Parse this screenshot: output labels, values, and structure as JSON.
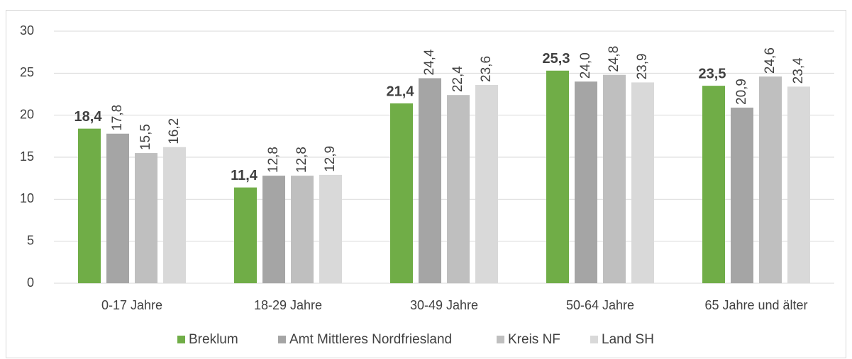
{
  "chart_data": {
    "type": "bar",
    "categories": [
      "0-17 Jahre",
      "18-29 Jahre",
      "30-49 Jahre",
      "50-64 Jahre",
      "65 Jahre und älter"
    ],
    "series": [
      {
        "name": "Breklum",
        "color": "#70ad47",
        "values": [
          18.4,
          11.4,
          21.4,
          25.3,
          23.5
        ],
        "value_labels": [
          "18,4",
          "11,4",
          "21,4",
          "25,3",
          "23,5"
        ]
      },
      {
        "name": "Amt Mittleres Nordfriesland",
        "color": "#a5a5a5",
        "values": [
          17.8,
          12.8,
          24.4,
          24.0,
          20.9
        ],
        "value_labels": [
          "17,8",
          "12,8",
          "24,4",
          "24,0",
          "20,9"
        ]
      },
      {
        "name": "Kreis NF",
        "color": "#bfbfbf",
        "values": [
          15.5,
          12.8,
          22.4,
          24.8,
          24.6
        ],
        "value_labels": [
          "15,5",
          "12,8",
          "22,4",
          "24,8",
          "24,6"
        ]
      },
      {
        "name": "Land SH",
        "color": "#d9d9d9",
        "values": [
          16.2,
          12.9,
          23.6,
          23.9,
          23.4
        ],
        "value_labels": [
          "16,2",
          "12,9",
          "23,6",
          "23,9",
          "23,4"
        ]
      }
    ],
    "ylim": [
      0,
      30
    ],
    "yticks": [
      0,
      5,
      10,
      15,
      20,
      25,
      30
    ],
    "grid": true,
    "legend": "bottom"
  }
}
